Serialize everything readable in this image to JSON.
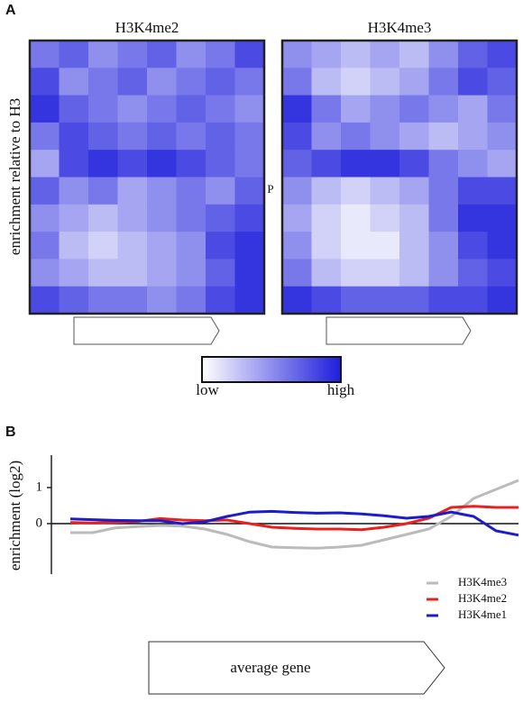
{
  "figure": {
    "panel_a": "A",
    "panel_b": "B",
    "heatmap_ylabel": "enrichment relative to H3",
    "annotation": "P"
  },
  "colorbar": {
    "low": "low",
    "high": "high",
    "colors": [
      "#ffffff",
      "#1e1edc"
    ]
  },
  "chart_data": [
    {
      "type": "heatmap",
      "title": "H3K4me2",
      "z": [
        [
          0.6,
          0.7,
          0.5,
          0.6,
          0.7,
          0.5,
          0.6,
          0.8
        ],
        [
          0.8,
          0.5,
          0.6,
          0.7,
          0.5,
          0.6,
          0.7,
          0.6
        ],
        [
          0.9,
          0.7,
          0.6,
          0.5,
          0.6,
          0.7,
          0.6,
          0.5
        ],
        [
          0.6,
          0.8,
          0.7,
          0.6,
          0.7,
          0.6,
          0.7,
          0.6
        ],
        [
          0.4,
          0.8,
          0.9,
          0.8,
          0.9,
          0.8,
          0.7,
          0.6
        ],
        [
          0.7,
          0.5,
          0.6,
          0.4,
          0.5,
          0.6,
          0.5,
          0.7
        ],
        [
          0.5,
          0.4,
          0.3,
          0.4,
          0.5,
          0.6,
          0.7,
          0.8
        ],
        [
          0.6,
          0.3,
          0.2,
          0.3,
          0.4,
          0.5,
          0.8,
          0.9
        ],
        [
          0.5,
          0.4,
          0.3,
          0.3,
          0.4,
          0.5,
          0.7,
          0.9
        ],
        [
          0.8,
          0.7,
          0.6,
          0.6,
          0.5,
          0.6,
          0.8,
          0.9
        ]
      ]
    },
    {
      "type": "heatmap",
      "title": "H3K4me3",
      "z": [
        [
          0.5,
          0.4,
          0.3,
          0.4,
          0.3,
          0.5,
          0.7,
          0.8
        ],
        [
          0.6,
          0.3,
          0.2,
          0.3,
          0.4,
          0.6,
          0.8,
          0.7
        ],
        [
          0.9,
          0.6,
          0.4,
          0.5,
          0.6,
          0.5,
          0.4,
          0.6
        ],
        [
          0.8,
          0.5,
          0.6,
          0.5,
          0.4,
          0.3,
          0.4,
          0.5
        ],
        [
          0.7,
          0.8,
          0.9,
          0.9,
          0.8,
          0.6,
          0.5,
          0.4
        ],
        [
          0.5,
          0.3,
          0.2,
          0.3,
          0.4,
          0.6,
          0.8,
          0.8
        ],
        [
          0.4,
          0.2,
          0.1,
          0.2,
          0.3,
          0.6,
          0.9,
          0.9
        ],
        [
          0.5,
          0.2,
          0.1,
          0.1,
          0.3,
          0.5,
          0.8,
          0.9
        ],
        [
          0.6,
          0.3,
          0.2,
          0.2,
          0.3,
          0.5,
          0.7,
          0.8
        ],
        [
          0.9,
          0.8,
          0.7,
          0.7,
          0.7,
          0.8,
          0.8,
          0.9
        ]
      ]
    },
    {
      "type": "line",
      "ylabel": "enrichment (log2)",
      "xlabel": "average gene",
      "x": [
        0,
        5,
        10,
        15,
        20,
        25,
        30,
        35,
        40,
        45,
        50,
        55,
        60,
        65,
        70,
        75,
        80,
        85,
        90,
        95,
        100
      ],
      "xlim": [
        0,
        100
      ],
      "ylim": [
        -1.4,
        1.9
      ],
      "yticks": [
        0,
        1
      ],
      "series": [
        {
          "name": "H3K4me3",
          "color": "#bbbbbb",
          "values": [
            -0.25,
            -0.25,
            -0.12,
            -0.08,
            -0.05,
            -0.07,
            -0.15,
            -0.3,
            -0.5,
            -0.65,
            -0.67,
            -0.68,
            -0.65,
            -0.6,
            -0.45,
            -0.3,
            -0.15,
            0.2,
            0.7,
            0.95,
            1.2
          ]
        },
        {
          "name": "H3K4me2",
          "color": "#e8201e",
          "values": [
            0.03,
            0.02,
            0.03,
            0.06,
            0.14,
            0.1,
            0.08,
            0.1,
            0.0,
            -0.1,
            -0.13,
            -0.15,
            -0.15,
            -0.17,
            -0.1,
            0.0,
            0.15,
            0.45,
            0.48,
            0.45,
            0.45
          ]
        },
        {
          "name": "H3K4me1",
          "color": "#1c1cc8",
          "values": [
            0.13,
            0.11,
            0.09,
            0.08,
            0.08,
            0.0,
            0.05,
            0.2,
            0.32,
            0.34,
            0.31,
            0.29,
            0.3,
            0.27,
            0.22,
            0.15,
            0.2,
            0.32,
            0.2,
            -0.2,
            -0.32
          ]
        }
      ]
    }
  ]
}
